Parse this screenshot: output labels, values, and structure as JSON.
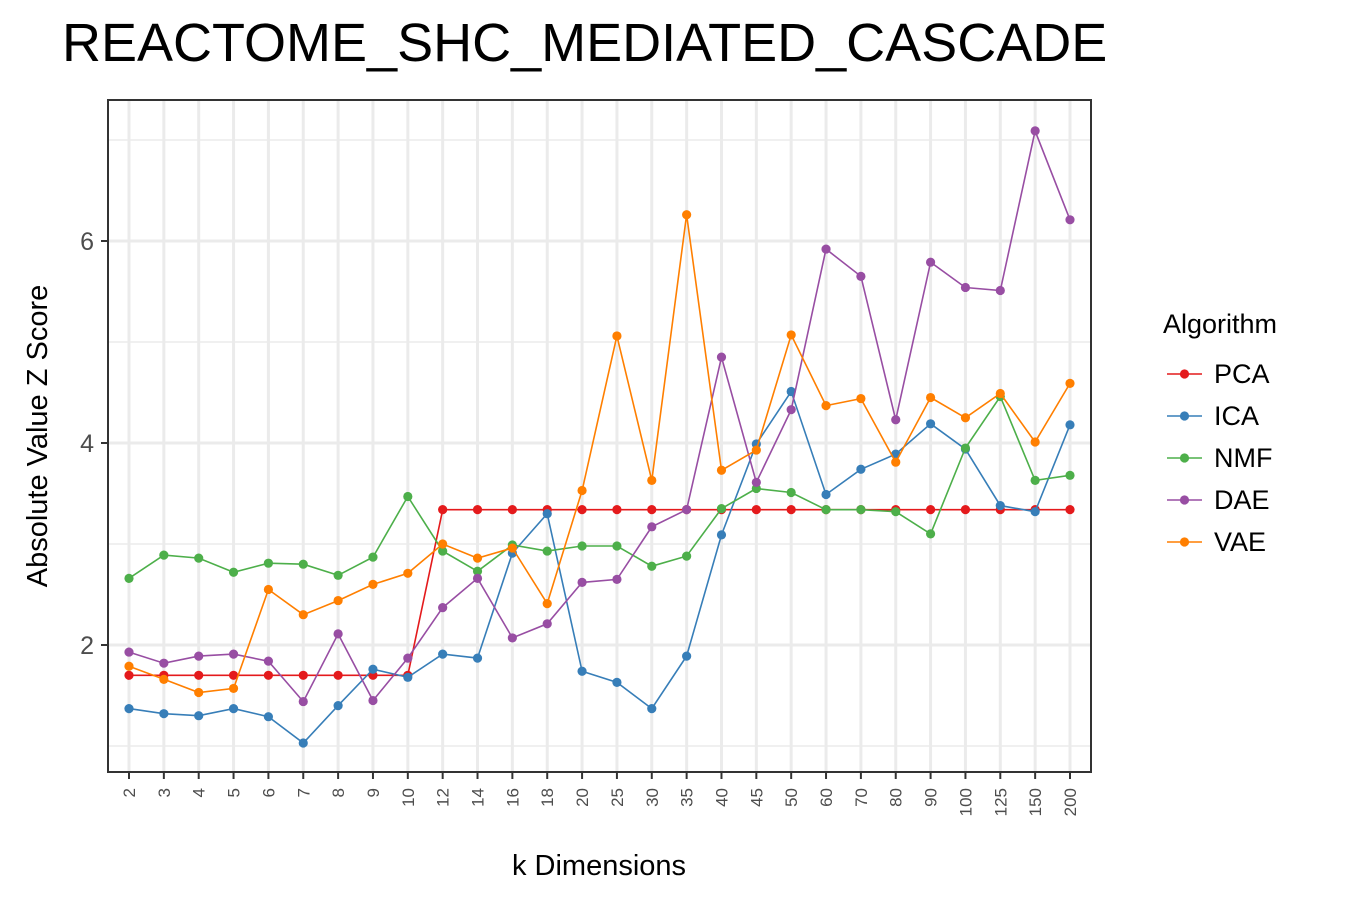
{
  "chart_data": {
    "type": "line",
    "title": "REACTOME_SHC_MEDIATED_CASCADE",
    "xlabel": "k Dimensions",
    "ylabel": "Absolute Value Z Score",
    "categories": [
      "2",
      "3",
      "4",
      "5",
      "6",
      "7",
      "8",
      "9",
      "10",
      "12",
      "14",
      "16",
      "18",
      "20",
      "25",
      "30",
      "35",
      "40",
      "45",
      "50",
      "60",
      "70",
      "80",
      "90",
      "100",
      "125",
      "150",
      "200"
    ],
    "ylim": [
      0.75,
      7.4
    ],
    "yticks": [
      2,
      4,
      6
    ],
    "legend_title": "Algorithm",
    "legend_position": "right",
    "grid": true,
    "series": [
      {
        "name": "PCA",
        "color": "#E41A1C",
        "values": [
          1.7,
          1.7,
          1.7,
          1.7,
          1.7,
          1.7,
          1.7,
          1.7,
          1.7,
          3.34,
          3.34,
          3.34,
          3.34,
          3.34,
          3.34,
          3.34,
          3.34,
          3.34,
          3.34,
          3.34,
          3.34,
          3.34,
          3.34,
          3.34,
          3.34,
          3.34,
          3.34,
          3.34
        ]
      },
      {
        "name": "ICA",
        "color": "#377EB8",
        "values": [
          1.37,
          1.32,
          1.3,
          1.37,
          1.29,
          1.03,
          1.4,
          1.76,
          1.68,
          1.91,
          1.87,
          2.91,
          3.3,
          1.74,
          1.63,
          1.37,
          1.89,
          3.09,
          3.99,
          4.51,
          3.49,
          3.74,
          3.89,
          4.19,
          3.94,
          3.38,
          3.32,
          4.18
        ]
      },
      {
        "name": "NMF",
        "color": "#4DAF4A",
        "values": [
          2.66,
          2.89,
          2.86,
          2.72,
          2.81,
          2.8,
          2.69,
          2.87,
          3.47,
          2.93,
          2.73,
          2.99,
          2.93,
          2.98,
          2.98,
          2.78,
          2.88,
          3.35,
          3.55,
          3.51,
          3.34,
          3.34,
          3.32,
          3.1,
          3.95,
          4.46,
          3.63,
          3.68
        ]
      },
      {
        "name": "DAE",
        "color": "#984EA3",
        "values": [
          1.93,
          1.82,
          1.89,
          1.91,
          1.84,
          1.44,
          2.11,
          1.45,
          1.87,
          2.37,
          2.66,
          2.07,
          2.21,
          2.62,
          2.65,
          3.17,
          3.34,
          4.85,
          3.61,
          4.33,
          5.92,
          5.65,
          4.23,
          5.79,
          5.54,
          5.51,
          7.09,
          6.21
        ]
      },
      {
        "name": "VAE",
        "color": "#FF7F00",
        "values": [
          1.79,
          1.66,
          1.53,
          1.57,
          2.55,
          2.3,
          2.44,
          2.6,
          2.71,
          3.0,
          2.86,
          2.96,
          2.41,
          3.53,
          5.06,
          3.63,
          6.26,
          3.73,
          3.93,
          5.07,
          4.37,
          4.44,
          3.81,
          4.45,
          4.25,
          4.49,
          4.01,
          4.59
        ]
      }
    ]
  }
}
